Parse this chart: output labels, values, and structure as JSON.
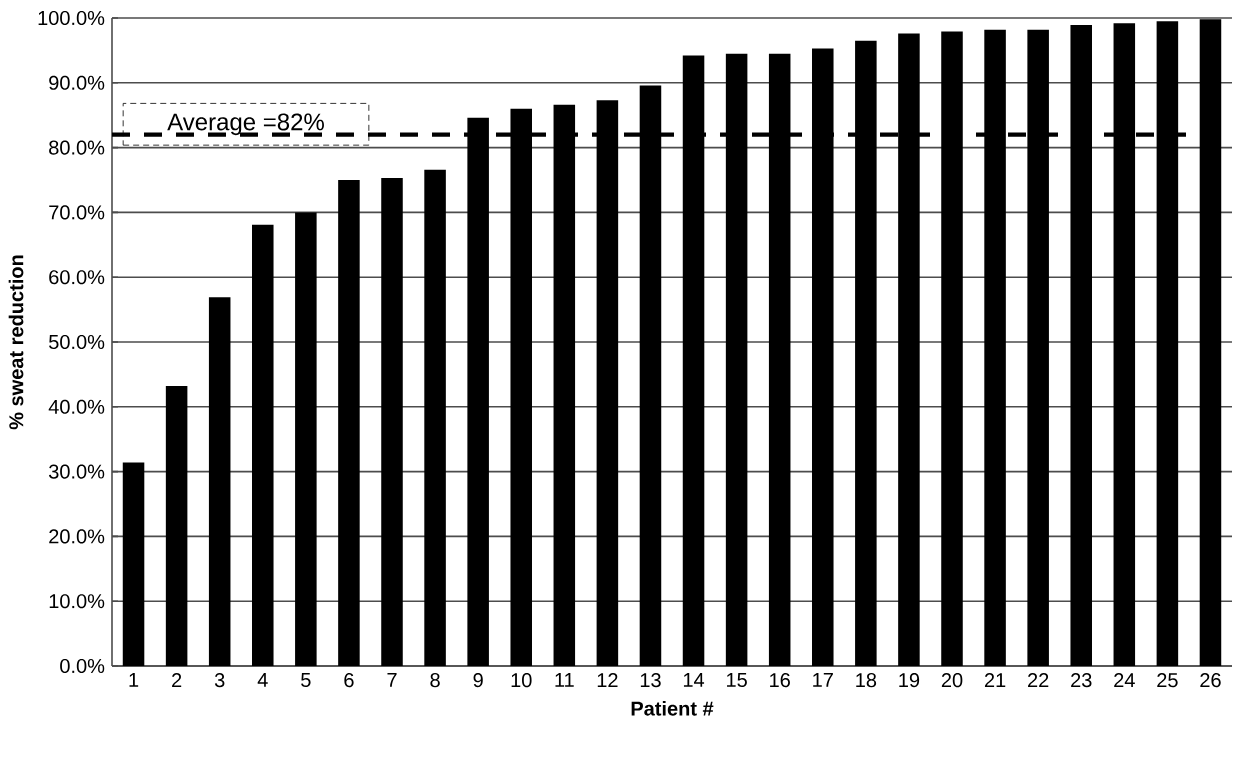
{
  "chart_data": {
    "type": "bar",
    "xlabel": "Patient #",
    "ylabel": "% sweat reduction",
    "categories": [
      "1",
      "2",
      "3",
      "4",
      "5",
      "6",
      "7",
      "8",
      "9",
      "10",
      "11",
      "12",
      "13",
      "14",
      "15",
      "16",
      "17",
      "18",
      "19",
      "20",
      "21",
      "22",
      "23",
      "24",
      "25",
      "26"
    ],
    "values": [
      31.4,
      43.2,
      56.9,
      68.1,
      70.0,
      75.0,
      75.3,
      76.6,
      84.6,
      86.0,
      86.6,
      87.3,
      89.6,
      94.2,
      94.5,
      94.5,
      95.3,
      96.5,
      97.6,
      97.9,
      98.2,
      98.2,
      98.9,
      99.2,
      99.5,
      99.8
    ],
    "color": "#000000",
    "ylim": [
      0,
      100
    ],
    "yticks": [
      {
        "value": 0,
        "label": "0.0%"
      },
      {
        "value": 10,
        "label": "10.0%"
      },
      {
        "value": 20,
        "label": "20.0%"
      },
      {
        "value": 30,
        "label": "30.0%"
      },
      {
        "value": 40,
        "label": "40.0%"
      },
      {
        "value": 50,
        "label": "50.0%"
      },
      {
        "value": 60,
        "label": "60.0%"
      },
      {
        "value": 70,
        "label": "70.0%"
      },
      {
        "value": 80,
        "label": "80.0%"
      },
      {
        "value": 90,
        "label": "90.0%"
      },
      {
        "value": 100,
        "label": "100.0%"
      }
    ],
    "grid": "y",
    "ref_lines": [
      {
        "axis": "y",
        "value": 82,
        "label": "Average =82%",
        "color": "#000000",
        "line_style": "dashed"
      }
    ]
  }
}
